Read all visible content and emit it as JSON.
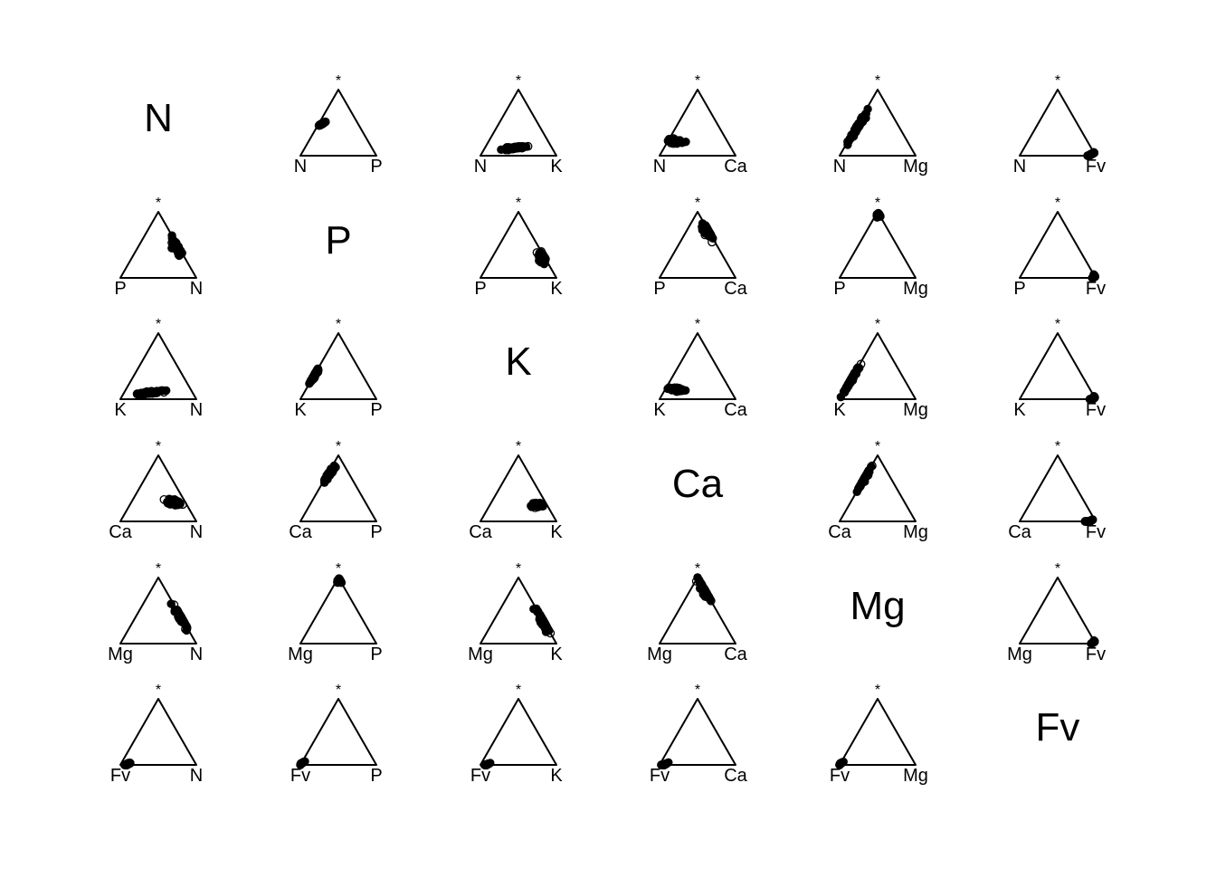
{
  "chart_data": {
    "type": "scatter",
    "subtype": "ternary-scatterplot-matrix",
    "variables": [
      "N",
      "P",
      "K",
      "Ca",
      "Mg",
      "Fv"
    ],
    "apex_label": "*",
    "marker": "open-circle",
    "marker_color": "#000000",
    "note": "Each off-diagonal panel is a ternary diagram with left vertex = row variable, right vertex = column variable, top vertex = * (all remaining components). Values are estimated centroid compositions (fractions: left, right, *) and an estimated elongation direction of the dense point clouds.",
    "cells": [
      {
        "row": "N",
        "col": "P",
        "center": [
          0.48,
          0.04,
          0.48
        ],
        "spread_dir": [
          0.52,
          0.0,
          0.48
        ],
        "spread": 0.22
      },
      {
        "row": "N",
        "col": "K",
        "center": [
          0.48,
          0.4,
          0.12
        ],
        "spread_dir": [
          -0.55,
          0.5,
          0.05
        ],
        "spread": 0.28
      },
      {
        "row": "N",
        "col": "Ca",
        "center": [
          0.7,
          0.08,
          0.22
        ],
        "spread_dir": [
          -0.3,
          0.4,
          -0.1
        ],
        "spread": 0.25
      },
      {
        "row": "N",
        "col": "Mg",
        "center": [
          0.55,
          0.02,
          0.43
        ],
        "spread_dir": [
          0.55,
          0.0,
          -0.55
        ],
        "spread": 0.35
      },
      {
        "row": "N",
        "col": "Fv",
        "center": [
          0.05,
          0.93,
          0.02
        ],
        "spread_dir": [
          0.1,
          -0.1,
          0.0
        ],
        "spread": 0.1
      },
      {
        "row": "P",
        "col": "N",
        "center": [
          0.02,
          0.52,
          0.46
        ],
        "spread_dir": [
          0.0,
          0.5,
          -0.5
        ],
        "spread": 0.26
      },
      {
        "row": "P",
        "col": "K",
        "center": [
          0.04,
          0.66,
          0.3
        ],
        "spread_dir": [
          0.0,
          0.45,
          -0.45
        ],
        "spread": 0.15
      },
      {
        "row": "P",
        "col": "Ca",
        "center": [
          0.02,
          0.27,
          0.71
        ],
        "spread_dir": [
          0.0,
          0.4,
          -0.4
        ],
        "spread": 0.25
      },
      {
        "row": "P",
        "col": "Mg",
        "center": [
          0.0,
          0.04,
          0.96
        ],
        "spread_dir": [
          0.0,
          0.4,
          -0.4
        ],
        "spread": 0.05
      },
      {
        "row": "P",
        "col": "Fv",
        "center": [
          0.0,
          0.98,
          0.02
        ],
        "spread_dir": [
          0.1,
          -0.1,
          0.0
        ],
        "spread": 0.02
      },
      {
        "row": "K",
        "col": "N",
        "center": [
          0.55,
          0.35,
          0.1
        ],
        "spread_dir": [
          0.55,
          -0.5,
          -0.05
        ],
        "spread": 0.28
      },
      {
        "row": "K",
        "col": "P",
        "center": [
          0.64,
          0.0,
          0.36
        ],
        "spread_dir": [
          0.55,
          0.0,
          -0.55
        ],
        "spread": 0.18
      },
      {
        "row": "K",
        "col": "Ca",
        "center": [
          0.7,
          0.15,
          0.15
        ],
        "spread_dir": [
          -0.3,
          0.4,
          -0.1
        ],
        "spread": 0.25
      },
      {
        "row": "K",
        "col": "Mg",
        "center": [
          0.7,
          0.0,
          0.3
        ],
        "spread_dir": [
          0.55,
          0.0,
          -0.55
        ],
        "spread": 0.35
      },
      {
        "row": "K",
        "col": "Fv",
        "center": [
          0.03,
          0.96,
          0.01
        ],
        "spread_dir": [
          0.1,
          -0.1,
          0.0
        ],
        "spread": 0.08
      },
      {
        "row": "Ca",
        "col": "N",
        "center": [
          0.15,
          0.57,
          0.28
        ],
        "spread_dir": [
          -0.2,
          0.3,
          -0.1
        ],
        "spread": 0.28
      },
      {
        "row": "Ca",
        "col": "P",
        "center": [
          0.26,
          0.02,
          0.72
        ],
        "spread_dir": [
          0.4,
          0.0,
          -0.4
        ],
        "spread": 0.25
      },
      {
        "row": "Ca",
        "col": "K",
        "center": [
          0.14,
          0.61,
          0.25
        ],
        "spread_dir": [
          -0.2,
          0.3,
          -0.1
        ],
        "spread": 0.22
      },
      {
        "row": "Ca",
        "col": "Mg",
        "center": [
          0.35,
          0.0,
          0.65
        ],
        "spread_dir": [
          0.4,
          0.0,
          -0.4
        ],
        "spread": 0.35
      },
      {
        "row": "Ca",
        "col": "Fv",
        "center": [
          0.08,
          0.92,
          0.0
        ],
        "spread_dir": [
          0.1,
          -0.1,
          0.0
        ],
        "spread": 0.08
      },
      {
        "row": "Mg",
        "col": "N",
        "center": [
          0.0,
          0.62,
          0.38
        ],
        "spread_dir": [
          0.0,
          0.45,
          -0.45
        ],
        "spread": 0.35
      },
      {
        "row": "Mg",
        "col": "P",
        "center": [
          0.0,
          0.04,
          0.96
        ],
        "spread_dir": [
          0.0,
          0.4,
          -0.4
        ],
        "spread": 0.05
      },
      {
        "row": "Mg",
        "col": "K",
        "center": [
          0.0,
          0.65,
          0.35
        ],
        "spread_dir": [
          0.0,
          0.45,
          -0.45
        ],
        "spread": 0.33
      },
      {
        "row": "Mg",
        "col": "Ca",
        "center": [
          0.0,
          0.2,
          0.8
        ],
        "spread_dir": [
          0.0,
          0.45,
          -0.45
        ],
        "spread": 0.3
      },
      {
        "row": "Mg",
        "col": "Fv",
        "center": [
          0.02,
          0.96,
          0.02
        ],
        "spread_dir": [
          0.1,
          -0.1,
          0.0
        ],
        "spread": 0.03
      },
      {
        "row": "Fv",
        "col": "N",
        "center": [
          0.92,
          0.08,
          0.0
        ],
        "spread_dir": [
          0.1,
          -0.1,
          0.0
        ],
        "spread": 0.12
      },
      {
        "row": "Fv",
        "col": "P",
        "center": [
          0.98,
          0.0,
          0.02
        ],
        "spread_dir": [
          0.1,
          -0.1,
          0.0
        ],
        "spread": 0.02
      },
      {
        "row": "Fv",
        "col": "K",
        "center": [
          0.92,
          0.08,
          0.0
        ],
        "spread_dir": [
          0.1,
          -0.1,
          0.0
        ],
        "spread": 0.08
      },
      {
        "row": "Fv",
        "col": "Ca",
        "center": [
          0.94,
          0.06,
          0.0
        ],
        "spread_dir": [
          0.1,
          -0.1,
          0.0
        ],
        "spread": 0.05
      },
      {
        "row": "Fv",
        "col": "Mg",
        "center": [
          0.98,
          0.0,
          0.02
        ],
        "spread_dir": [
          0.1,
          -0.1,
          0.0
        ],
        "spread": 0.02
      }
    ]
  }
}
